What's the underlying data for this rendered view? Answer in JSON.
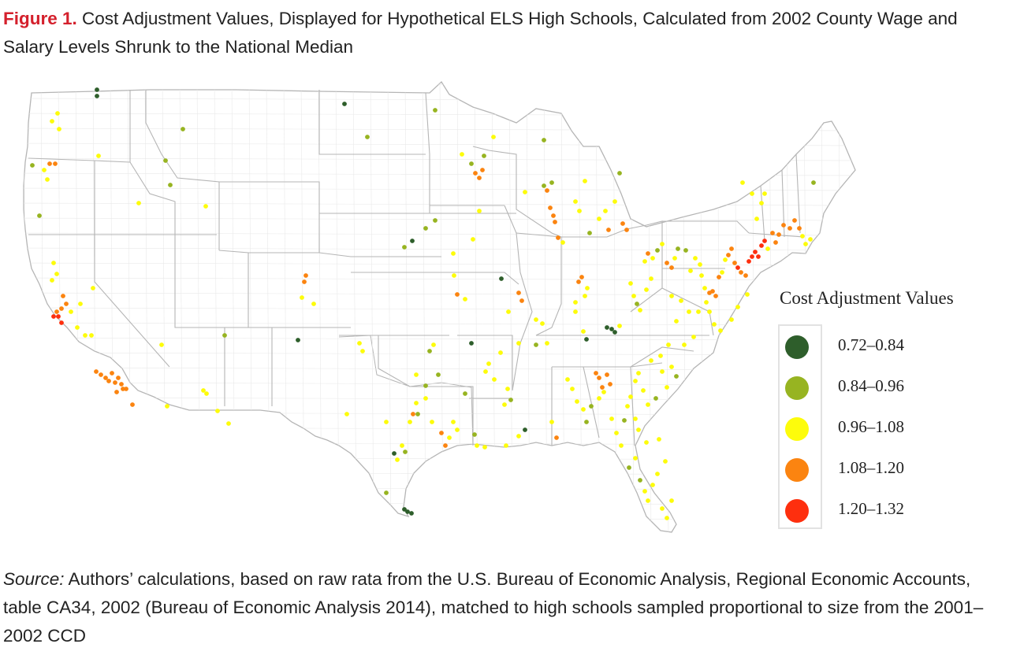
{
  "figure": {
    "label": "Figure 1.",
    "title": " Cost Adjustment Values, Displayed for Hypothetical ELS High Schools, Calculated from 2002 County Wage and Salary Levels Shrunk to the National Median"
  },
  "legend": {
    "title": "Cost Adjustment Values",
    "items": [
      {
        "label": "0.72–0.84",
        "color": "#2e5e2b"
      },
      {
        "label": "0.84–0.96",
        "color": "#97b421"
      },
      {
        "label": "0.96–1.08",
        "color": "#fdfc0b"
      },
      {
        "label": "1.08–1.20",
        "color": "#fb8410"
      },
      {
        "label": "1.20–1.32",
        "color": "#fe2f0e"
      }
    ]
  },
  "source": {
    "label": "Source:",
    "text": " Authors’ calculations, based on raw rata from the U.S. Bureau of Economic Analysis, Regional Economic Accounts, table CA34, 2002 (Bureau of Economic Analysis 2014), matched to high schools sampled proportional to size from the 2001–2002 CCD"
  },
  "map": {
    "land_color": "#ffffff",
    "state_border_color": "#b5b5b5",
    "county_border_color": "#e9e9e9"
  }
}
